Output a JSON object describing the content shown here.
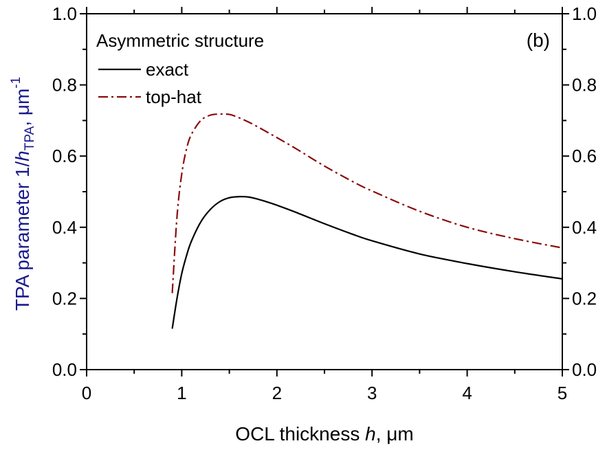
{
  "chart_data": {
    "type": "line",
    "title": "",
    "annotation": "(b)",
    "legend": {
      "title": "Asymmetric structure",
      "placement": "top-left"
    },
    "xlabel": {
      "prefix": "OCL thickness ",
      "var": "h",
      "suffix": ", μm"
    },
    "ylabel": {
      "prefix": "TPA parameter 1/",
      "var": "h",
      "sub": "TPA",
      "unit": ", μm",
      "sup": "-1"
    },
    "xlim": [
      0,
      5
    ],
    "ylim": [
      0,
      1.0
    ],
    "xticks": [
      "0",
      "1",
      "2",
      "3",
      "4",
      "5"
    ],
    "yticks": [
      "0.0",
      "0.2",
      "0.4",
      "0.6",
      "0.8",
      "1.0"
    ],
    "right_yticks": [
      "0.0",
      "0.2",
      "0.4",
      "0.6",
      "0.8",
      "1.0"
    ],
    "grid": false,
    "series": [
      {
        "name": "exact",
        "color": "#000000",
        "style": "solid",
        "x": [
          0.9,
          0.95,
          1.0,
          1.05,
          1.1,
          1.2,
          1.3,
          1.4,
          1.5,
          1.6,
          1.7,
          1.8,
          1.9,
          2.0,
          2.2,
          2.5,
          2.8,
          3.0,
          3.5,
          4.0,
          4.5,
          5.0
        ],
        "y": [
          0.115,
          0.2,
          0.27,
          0.32,
          0.36,
          0.415,
          0.45,
          0.472,
          0.483,
          0.486,
          0.485,
          0.479,
          0.471,
          0.462,
          0.442,
          0.41,
          0.38,
          0.362,
          0.325,
          0.298,
          0.275,
          0.255
        ]
      },
      {
        "name": "top-hat",
        "color": "#8b0a0a",
        "style": "dashdot",
        "x": [
          0.9,
          0.95,
          1.0,
          1.05,
          1.1,
          1.2,
          1.3,
          1.4,
          1.5,
          1.6,
          1.7,
          1.8,
          1.9,
          2.0,
          2.2,
          2.5,
          2.8,
          3.0,
          3.5,
          4.0,
          4.5,
          5.0
        ],
        "y": [
          0.215,
          0.43,
          0.55,
          0.62,
          0.66,
          0.7,
          0.715,
          0.718,
          0.717,
          0.708,
          0.696,
          0.682,
          0.667,
          0.652,
          0.621,
          0.572,
          0.528,
          0.502,
          0.445,
          0.4,
          0.368,
          0.342
        ]
      }
    ]
  }
}
